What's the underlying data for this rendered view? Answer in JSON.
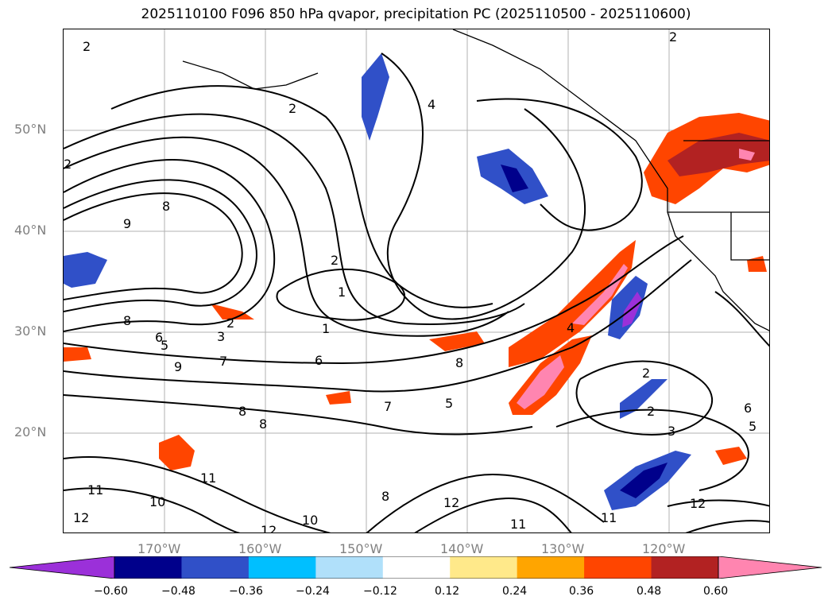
{
  "title": "2025110100 F096 850 hPa qvapor, precipitation PC (2025110500 - 2025110600)",
  "map": {
    "lat_labels": [
      "50°N",
      "40°N",
      "30°N",
      "20°N"
    ],
    "lon_labels": [
      "170°W",
      "160°W",
      "150°W",
      "140°W",
      "130°W",
      "120°W"
    ],
    "contour_labels": [
      "2",
      "2",
      "2",
      "4",
      "2",
      "2",
      "8",
      "9",
      "8",
      "1",
      "2",
      "1",
      "6",
      "3",
      "5",
      "6",
      "7",
      "9",
      "7",
      "5",
      "4",
      "8",
      "2",
      "2",
      "3",
      "6",
      "5",
      "8",
      "8",
      "11",
      "11",
      "12",
      "10",
      "12",
      "8",
      "12",
      "11",
      "12",
      "10",
      "11"
    ]
  },
  "colorbar": {
    "ticks": [
      "−0.60",
      "−0.48",
      "−0.36",
      "−0.24",
      "−0.12",
      "0.12",
      "0.24",
      "0.36",
      "0.48",
      "0.60"
    ],
    "colors": [
      "#9b30d9",
      "#00008b",
      "#3050c8",
      "#00bfff",
      "#b0e0fa",
      "#ffffff",
      "#ffe98a",
      "#ffa500",
      "#ff4500",
      "#b22222",
      "#ff85b0"
    ]
  }
}
